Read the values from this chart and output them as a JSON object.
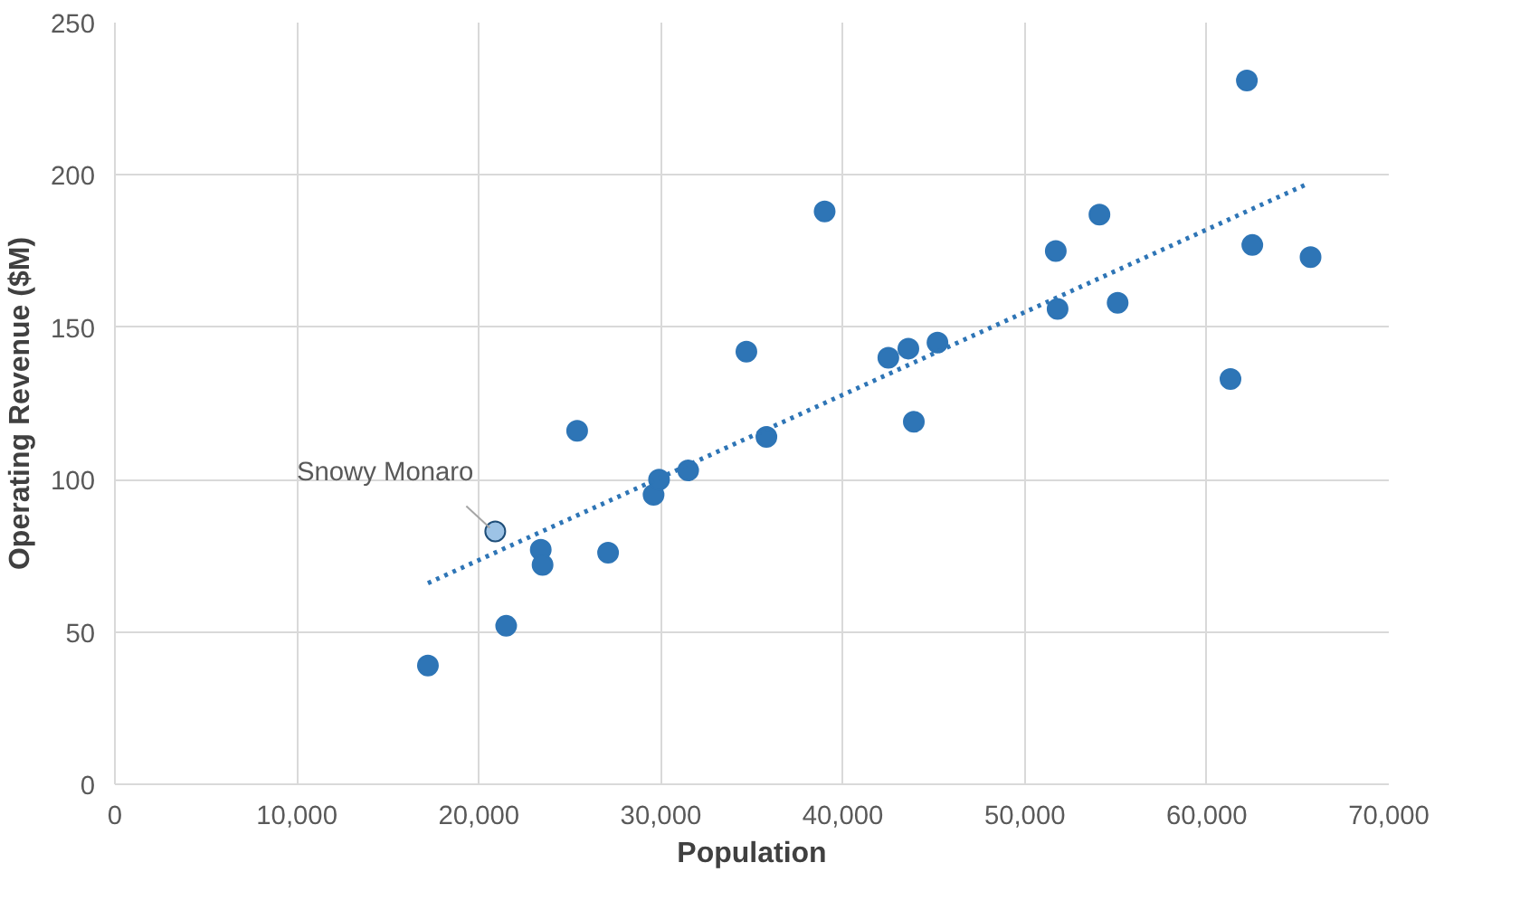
{
  "chart_data": {
    "type": "scatter",
    "xlabel": "Population",
    "ylabel": "Operating Revenue ($M)",
    "xlim": [
      0,
      70000
    ],
    "ylim": [
      0,
      250
    ],
    "xticks": [
      {
        "value": 0,
        "label": "0"
      },
      {
        "value": 10000,
        "label": "10,000"
      },
      {
        "value": 20000,
        "label": "20,000"
      },
      {
        "value": 30000,
        "label": "30,000"
      },
      {
        "value": 40000,
        "label": "40,000"
      },
      {
        "value": 50000,
        "label": "50,000"
      },
      {
        "value": 60000,
        "label": "60,000"
      },
      {
        "value": 70000,
        "label": "70,000"
      }
    ],
    "yticks": [
      0,
      50,
      100,
      150,
      200,
      250
    ],
    "grid": true,
    "marker": "circle",
    "series": [
      {
        "color": "#2e75b6",
        "x": [
          17200,
          21500,
          23400,
          23500,
          27100,
          25400,
          29600,
          29900,
          31500,
          34700,
          35800,
          39000,
          42500,
          43600,
          43900,
          45200,
          51700,
          51800,
          54100,
          55100,
          61300,
          62200,
          62500,
          65700
        ],
        "values": [
          39,
          52,
          77,
          72,
          76,
          116,
          95,
          100,
          103,
          142,
          114,
          188,
          140,
          143,
          119,
          145,
          175,
          156,
          187,
          158,
          133,
          231,
          177,
          173
        ]
      },
      {
        "color": "#9dc3e6",
        "x": [
          20900
        ],
        "values": [
          83
        ]
      },
      {
        "type": "line",
        "line_style": "dotted",
        "marker": "none",
        "color": "#2e75b6",
        "x": [
          17200,
          65500
        ],
        "values": [
          66,
          197
        ]
      }
    ],
    "annotations": [
      {
        "text": "Snowy Monaro",
        "x": 20900,
        "y": 83
      }
    ]
  }
}
